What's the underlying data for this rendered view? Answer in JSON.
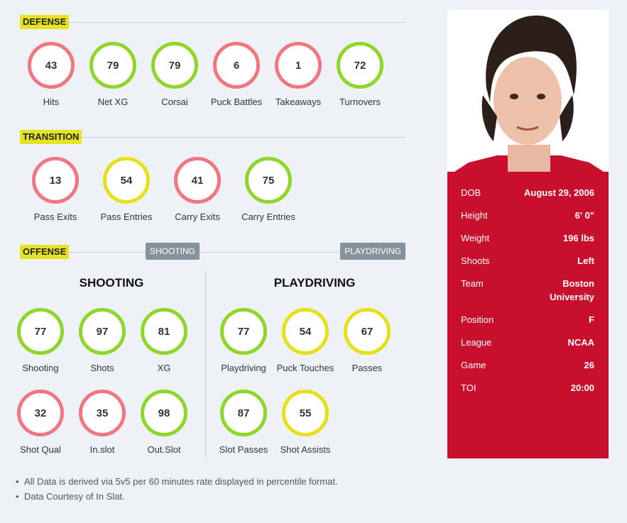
{
  "sections": {
    "defense": "DEFENSE",
    "transition": "TRANSITION",
    "offense": "OFFENSE",
    "shooting_pill": "SHOOTING",
    "playdriving_pill": "PLAYDRIVING"
  },
  "defense": [
    {
      "value": "43",
      "label": "Hits",
      "color": "red"
    },
    {
      "value": "79",
      "label": "Net XG",
      "color": "green"
    },
    {
      "value": "79",
      "label": "Corsai",
      "color": "green"
    },
    {
      "value": "6",
      "label": "Puck Battles",
      "color": "red"
    },
    {
      "value": "1",
      "label": "Takeaways",
      "color": "red"
    },
    {
      "value": "72",
      "label": "Turnovers",
      "color": "green"
    }
  ],
  "transition": [
    {
      "value": "13",
      "label": "Pass Exits",
      "color": "red"
    },
    {
      "value": "54",
      "label": "Pass Entries",
      "color": "yellow"
    },
    {
      "value": "41",
      "label": "Carry Exits",
      "color": "red"
    },
    {
      "value": "75",
      "label": "Carry Entries",
      "color": "green"
    }
  ],
  "shooting": {
    "title": "SHOOTING",
    "stats": [
      {
        "value": "77",
        "label": "Shooting",
        "color": "green"
      },
      {
        "value": "97",
        "label": "Shots",
        "color": "green"
      },
      {
        "value": "81",
        "label": "XG",
        "color": "green"
      },
      {
        "value": "32",
        "label": "Shot Qual",
        "color": "red"
      },
      {
        "value": "35",
        "label": "In.slot",
        "color": "red"
      },
      {
        "value": "98",
        "label": "Out.Slot",
        "color": "green"
      }
    ]
  },
  "playdriving": {
    "title": "PLAYDRIVING",
    "stats": [
      {
        "value": "77",
        "label": "Playdriving",
        "color": "green"
      },
      {
        "value": "54",
        "label": "Puck Touches",
        "color": "yellow"
      },
      {
        "value": "67",
        "label": "Passes",
        "color": "yellow"
      },
      {
        "value": "87",
        "label": "Slot Passes",
        "color": "green"
      },
      {
        "value": "55",
        "label": "Shot Assists",
        "color": "yellow"
      }
    ]
  },
  "notes": [
    "All Data is derived via 5v5 per 60 minutes rate displayed in percentile format.",
    "Data Courtesy of In Slat."
  ],
  "player": {
    "rows": [
      {
        "k": "DOB",
        "v": "August 29, 2006"
      },
      {
        "k": "Height",
        "v": "6' 0\""
      },
      {
        "k": "Weight",
        "v": "196 lbs"
      },
      {
        "k": "Shoots",
        "v": "Left"
      },
      {
        "k": "Team",
        "v": "Boston University"
      },
      {
        "k": "Position",
        "v": "F"
      },
      {
        "k": "League",
        "v": "NCAA"
      },
      {
        "k": "Game",
        "v": "26"
      },
      {
        "k": "TOI",
        "v": "20:00"
      }
    ]
  },
  "colors": {
    "red": "#ef7781",
    "green": "#8ed62a",
    "yellow": "#e6e01a",
    "card": "#c8102e",
    "tag": "#e6e322"
  }
}
